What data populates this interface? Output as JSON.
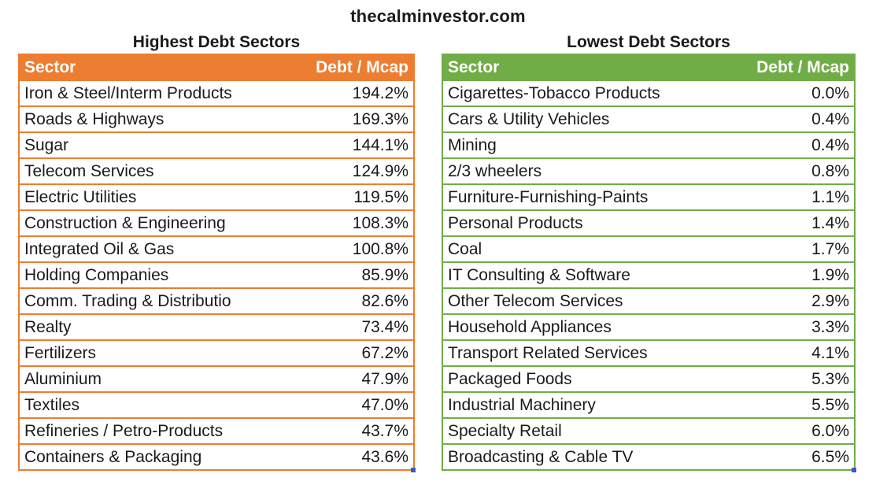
{
  "site": {
    "title": "thecalminvestor.com"
  },
  "colors": {
    "highest_accent": "#ed7d31",
    "lowest_accent": "#70ad47"
  },
  "highest": {
    "heading": "Highest Debt Sectors",
    "columns": [
      "Sector",
      "Debt / Mcap"
    ],
    "rows": [
      {
        "sector": "Iron & Steel/Interm Products",
        "value": "194.2%"
      },
      {
        "sector": "Roads & Highways",
        "value": "169.3%"
      },
      {
        "sector": "Sugar",
        "value": "144.1%"
      },
      {
        "sector": "Telecom Services",
        "value": "124.9%"
      },
      {
        "sector": "Electric Utilities",
        "value": "119.5%"
      },
      {
        "sector": "Construction & Engineering",
        "value": "108.3%"
      },
      {
        "sector": "Integrated Oil & Gas",
        "value": "100.8%"
      },
      {
        "sector": "Holding Companies",
        "value": "85.9%"
      },
      {
        "sector": "Comm. Trading & Distributio",
        "value": "82.6%"
      },
      {
        "sector": "Realty",
        "value": "73.4%"
      },
      {
        "sector": "Fertilizers",
        "value": "67.2%"
      },
      {
        "sector": "Aluminium",
        "value": "47.9%"
      },
      {
        "sector": "Textiles",
        "value": "47.0%"
      },
      {
        "sector": "Refineries / Petro-Products",
        "value": "43.7%"
      },
      {
        "sector": "Containers & Packaging",
        "value": "43.6%"
      }
    ]
  },
  "lowest": {
    "heading": "Lowest Debt Sectors",
    "columns": [
      "Sector",
      "Debt / Mcap"
    ],
    "rows": [
      {
        "sector": "Cigarettes-Tobacco Products",
        "value": "0.0%"
      },
      {
        "sector": "Cars & Utility Vehicles",
        "value": "0.4%"
      },
      {
        "sector": "Mining",
        "value": "0.4%"
      },
      {
        "sector": "2/3 wheelers",
        "value": "0.8%"
      },
      {
        "sector": "Furniture-Furnishing-Paints",
        "value": "1.1%"
      },
      {
        "sector": "Personal Products",
        "value": "1.4%"
      },
      {
        "sector": "Coal",
        "value": "1.7%"
      },
      {
        "sector": "IT Consulting & Software",
        "value": "1.9%"
      },
      {
        "sector": "Other Telecom Services",
        "value": "2.9%"
      },
      {
        "sector": "Household Appliances",
        "value": "3.3%"
      },
      {
        "sector": "Transport Related Services",
        "value": "4.1%"
      },
      {
        "sector": "Packaged Foods",
        "value": "5.3%"
      },
      {
        "sector": "Industrial Machinery",
        "value": "5.5%"
      },
      {
        "sector": "Specialty Retail",
        "value": "6.0%"
      },
      {
        "sector": "Broadcasting & Cable TV",
        "value": "6.5%"
      }
    ]
  }
}
